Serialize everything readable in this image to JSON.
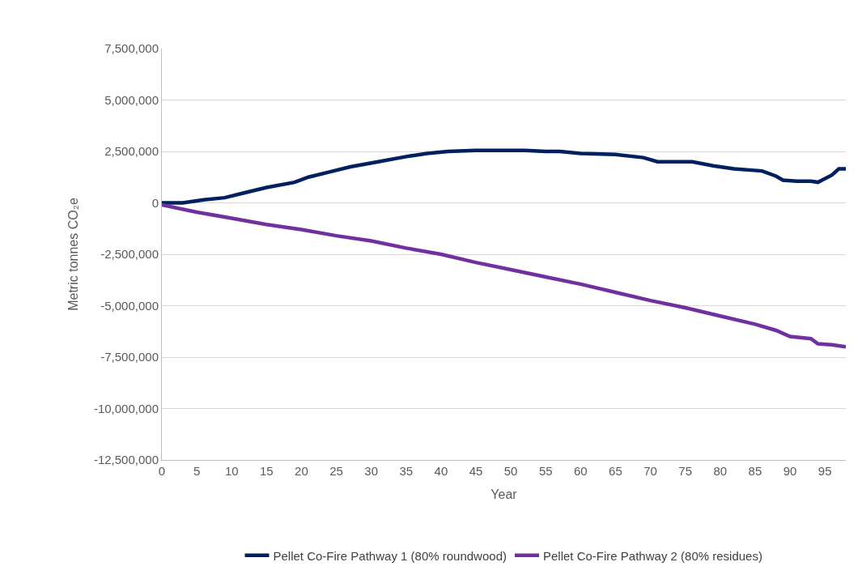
{
  "chart_data": {
    "type": "line",
    "xlabel": "Year",
    "ylabel": "Metric tonnes CO₂e",
    "xlim": [
      0,
      98
    ],
    "xticks": [
      0,
      5,
      10,
      15,
      20,
      25,
      30,
      35,
      40,
      45,
      50,
      55,
      60,
      65,
      70,
      75,
      80,
      85,
      90,
      95
    ],
    "ylim": [
      -12500000,
      7500000
    ],
    "yticks": [
      {
        "value": -12500000,
        "label": "-12,500,000"
      },
      {
        "value": -10000000,
        "label": "-10,000,000"
      },
      {
        "value": -7500000,
        "label": "-7,500,000"
      },
      {
        "value": -5000000,
        "label": "-5,000,000"
      },
      {
        "value": -2500000,
        "label": "-2,500,000"
      },
      {
        "value": 0,
        "label": "0"
      },
      {
        "value": 2500000,
        "label": "2,500,000"
      },
      {
        "value": 5000000,
        "label": "5,000,000"
      },
      {
        "value": 7500000,
        "label": "7,500,000"
      }
    ],
    "grid": "y",
    "legend": "bottom",
    "marker": "none",
    "line_style": "solid",
    "series": [
      {
        "name": "Pellet Co-Fire Pathway 1 (80% roundwood)",
        "color": "#002060",
        "x": [
          0,
          3,
          6,
          9,
          12,
          15,
          19,
          21,
          24,
          27,
          31,
          35,
          38,
          41,
          45,
          50,
          52,
          55,
          57,
          60,
          65,
          69,
          71,
          76,
          79,
          82,
          86,
          88,
          89,
          91,
          93,
          94,
          96,
          97,
          98
        ],
        "values": [
          0,
          0,
          150000,
          250000,
          500000,
          750000,
          1000000,
          1250000,
          1500000,
          1750000,
          2000000,
          2250000,
          2400000,
          2500000,
          2550000,
          2550000,
          2550000,
          2500000,
          2500000,
          2400000,
          2350000,
          2200000,
          2000000,
          2000000,
          1800000,
          1650000,
          1550000,
          1300000,
          1100000,
          1050000,
          1050000,
          1000000,
          1350000,
          1650000,
          1650000
        ]
      },
      {
        "name": "Pellet Co-Fire Pathway 2 (80% residues)",
        "color": "#7030a0",
        "x": [
          0,
          5,
          10,
          15,
          20,
          25,
          30,
          35,
          40,
          45,
          50,
          55,
          60,
          65,
          70,
          75,
          80,
          85,
          88,
          90,
          93,
          94,
          96,
          98
        ],
        "values": [
          -100000,
          -450000,
          -750000,
          -1050000,
          -1300000,
          -1600000,
          -1850000,
          -2200000,
          -2500000,
          -2900000,
          -3250000,
          -3600000,
          -3950000,
          -4350000,
          -4750000,
          -5100000,
          -5500000,
          -5900000,
          -6200000,
          -6500000,
          -6600000,
          -6850000,
          -6900000,
          -7000000
        ]
      }
    ]
  }
}
